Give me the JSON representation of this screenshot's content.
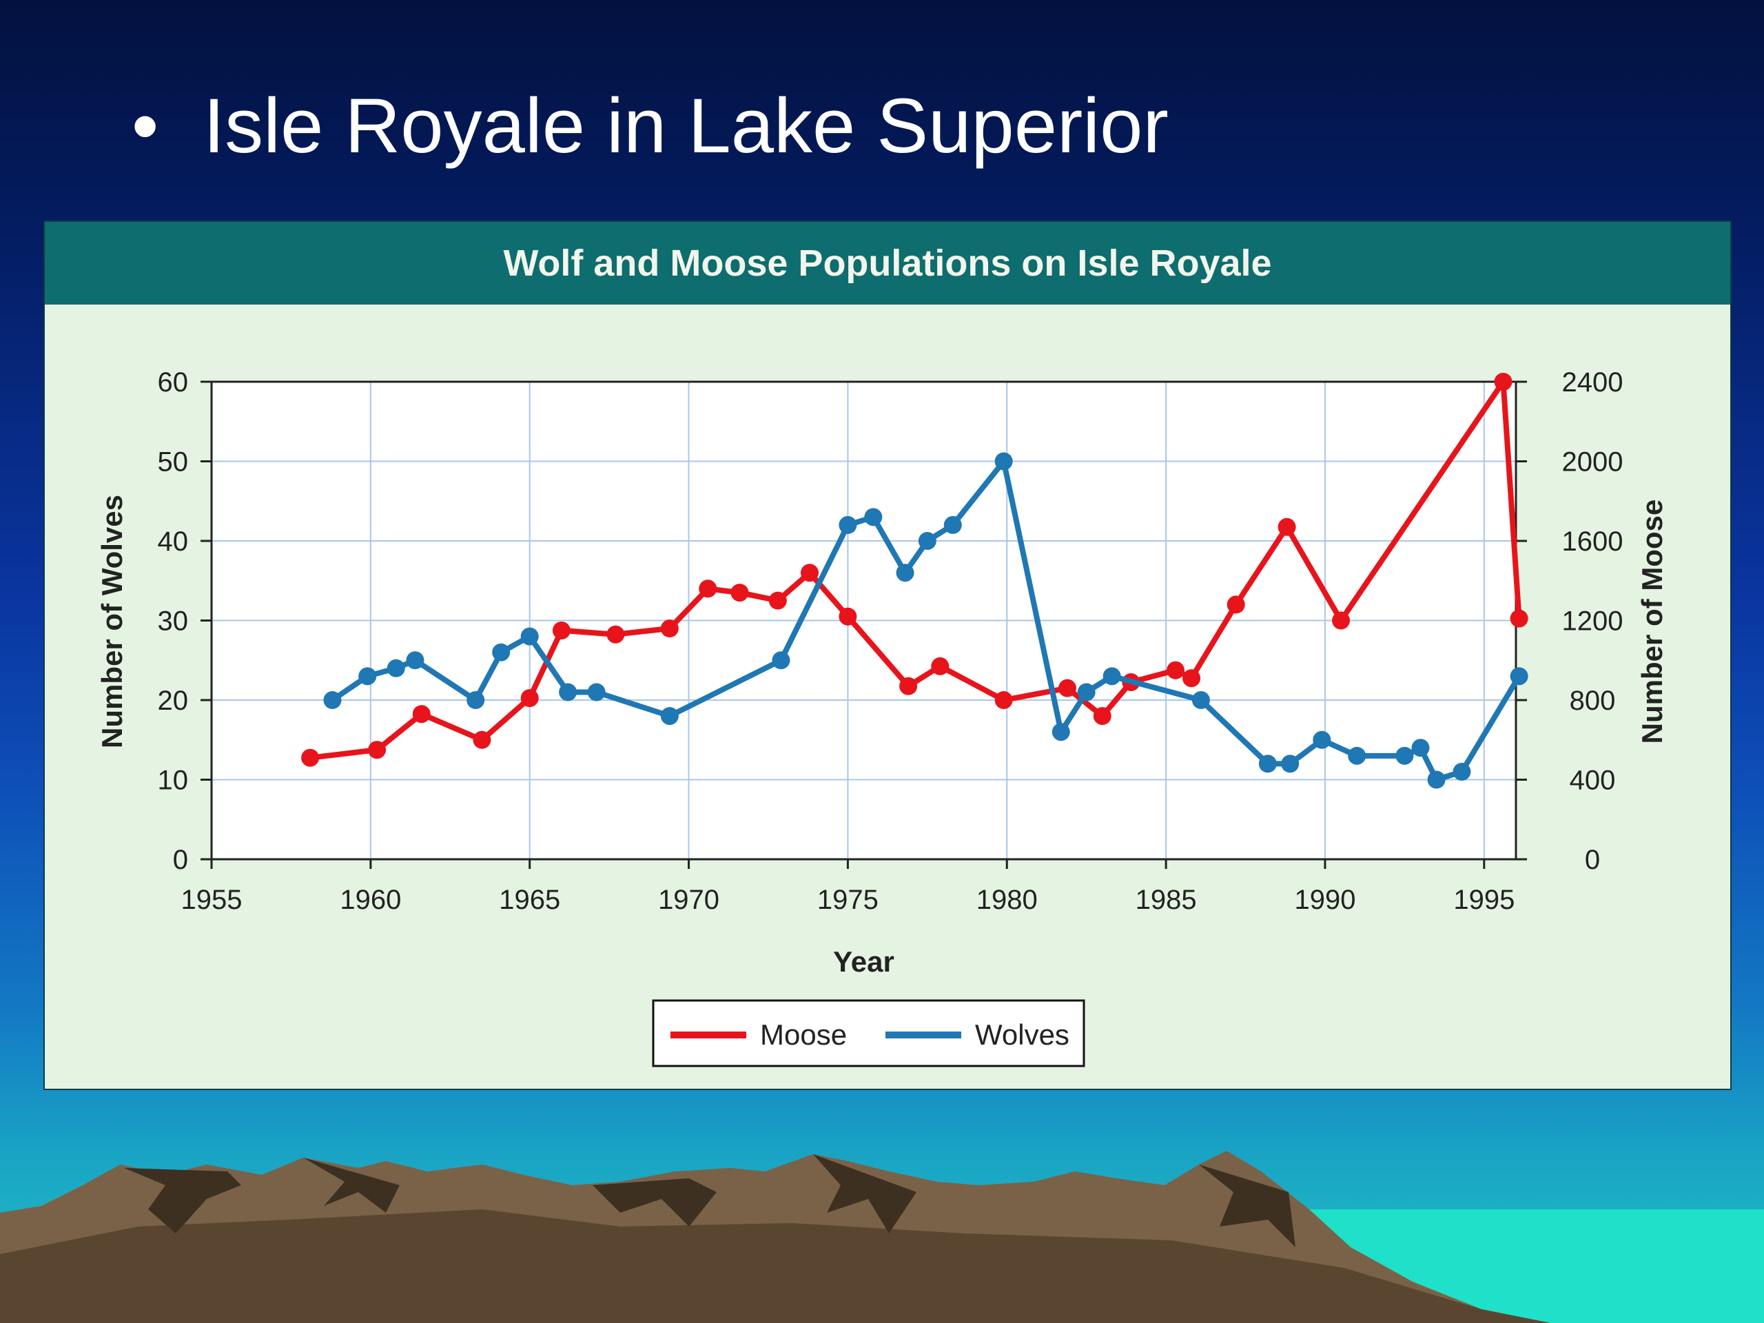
{
  "slide": {
    "bullet": "•",
    "title": "Isle Royale in Lake Superior"
  },
  "colors": {
    "moose": "#e8141b",
    "wolves": "#1f77b4",
    "header": "#0e6d6e",
    "panel": "#e5f4e2",
    "grid": "#a9c7ea"
  },
  "chart_data": {
    "type": "line",
    "title": "Wolf and  Moose Populations on Isle Royale",
    "xlabel": "Year",
    "ylabel_left": "Number of Wolves",
    "ylabel_right": "Number of Moose",
    "xlim": [
      1955,
      1996
    ],
    "ylim_left": [
      0,
      60
    ],
    "ylim_right": [
      0,
      2400
    ],
    "x_ticks": [
      1955,
      1960,
      1965,
      1970,
      1975,
      1980,
      1985,
      1990,
      1995
    ],
    "y_ticks_left": [
      0,
      10,
      20,
      30,
      40,
      50,
      60
    ],
    "y_ticks_right": [
      0,
      400,
      800,
      1200,
      1600,
      2000,
      2400
    ],
    "grid": true,
    "legend_position": "bottom-center",
    "series": [
      {
        "name": "Moose",
        "axis": "right",
        "x": [
          1958.1,
          1960.2,
          1961.6,
          1963.5,
          1965.0,
          1966.0,
          1967.7,
          1969.4,
          1970.6,
          1971.6,
          1972.8,
          1973.8,
          1975.0,
          1976.9,
          1977.9,
          1979.9,
          1981.9,
          1983.0,
          1983.9,
          1985.3,
          1985.8,
          1987.2,
          1988.8,
          1990.5,
          1995.6,
          1996.1
        ],
        "values": [
          510,
          550,
          730,
          600,
          810,
          1150,
          1130,
          1160,
          1360,
          1340,
          1300,
          1440,
          1220,
          870,
          970,
          800,
          860,
          720,
          890,
          950,
          910,
          1280,
          1670,
          1200,
          2400,
          1210
        ]
      },
      {
        "name": "Wolves",
        "axis": "left",
        "x": [
          1958.8,
          1959.9,
          1960.8,
          1961.4,
          1963.3,
          1964.1,
          1965.0,
          1966.2,
          1967.1,
          1969.4,
          1972.9,
          1975.0,
          1975.8,
          1976.8,
          1977.5,
          1978.3,
          1979.9,
          1981.7,
          1982.5,
          1983.3,
          1986.1,
          1988.2,
          1988.9,
          1989.9,
          1991.0,
          1992.5,
          1993.0,
          1993.5,
          1994.3,
          1996.1
        ],
        "values": [
          20,
          23,
          24,
          25,
          20,
          26,
          28,
          21,
          21,
          18,
          25,
          42,
          43,
          36,
          40,
          42,
          50,
          16,
          21,
          23,
          20,
          12,
          12,
          15,
          13,
          13,
          14,
          10,
          11,
          23
        ]
      }
    ]
  }
}
